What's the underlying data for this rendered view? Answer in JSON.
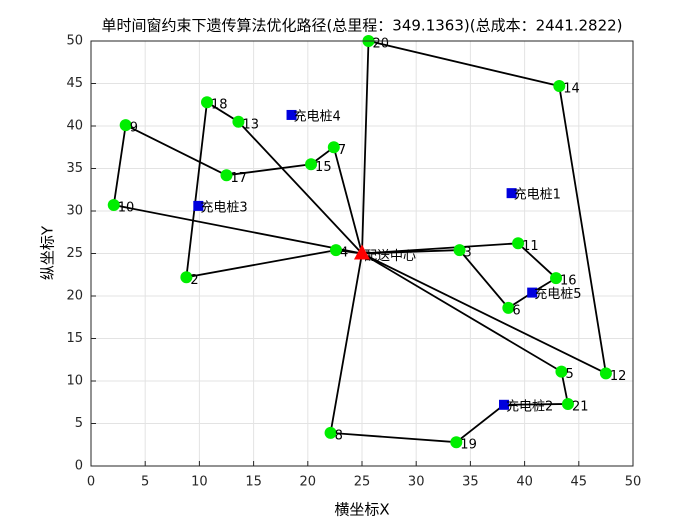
{
  "chart_data": {
    "type": "route",
    "title": "单时间窗约束下遗传算法优化路径(总里程：349.1363)(总成本：2441.2822)",
    "xlabel": "横坐标X",
    "ylabel": "纵坐标Y",
    "xlim": [
      0,
      50
    ],
    "ylim": [
      0,
      50
    ],
    "xticks": [
      0,
      5,
      10,
      15,
      20,
      25,
      30,
      35,
      40,
      45,
      50
    ],
    "yticks": [
      0,
      5,
      10,
      15,
      20,
      25,
      30,
      35,
      40,
      45,
      50
    ],
    "grid": true,
    "route_color": "#000000",
    "customer_color": "#00ee00",
    "station_color": "#0000dd",
    "depot_color": "#ff0000",
    "depot": {
      "label": "配送中心",
      "x": 25,
      "y": 25
    },
    "customers": [
      {
        "label": "20",
        "x": 25.6,
        "y": 50
      },
      {
        "label": "14",
        "x": 43.2,
        "y": 44.7
      },
      {
        "label": "18",
        "x": 10.7,
        "y": 42.8
      },
      {
        "label": "13",
        "x": 13.6,
        "y": 40.5
      },
      {
        "label": "9",
        "x": 3.2,
        "y": 40.1
      },
      {
        "label": "7",
        "x": 22.4,
        "y": 37.5
      },
      {
        "label": "15",
        "x": 20.3,
        "y": 35.5
      },
      {
        "label": "17",
        "x": 12.5,
        "y": 34.2
      },
      {
        "label": "10",
        "x": 2.1,
        "y": 30.7
      },
      {
        "label": "11",
        "x": 39.4,
        "y": 26.2
      },
      {
        "label": "3",
        "x": 34.0,
        "y": 25.4
      },
      {
        "label": "4",
        "x": 22.6,
        "y": 25.4
      },
      {
        "label": "16",
        "x": 42.9,
        "y": 22.1
      },
      {
        "label": "2",
        "x": 8.8,
        "y": 22.2
      },
      {
        "label": "6",
        "x": 38.5,
        "y": 18.6
      },
      {
        "label": "5",
        "x": 43.4,
        "y": 11.1
      },
      {
        "label": "12",
        "x": 47.5,
        "y": 10.9
      },
      {
        "label": "21",
        "x": 44.0,
        "y": 7.3
      },
      {
        "label": "8",
        "x": 22.1,
        "y": 3.9
      },
      {
        "label": "19",
        "x": 33.7,
        "y": 2.8
      }
    ],
    "stations": [
      {
        "label": "充电桩1",
        "x": 38.8,
        "y": 32.1
      },
      {
        "label": "充电桩2",
        "x": 38.1,
        "y": 7.2
      },
      {
        "label": "充电桩3",
        "x": 9.9,
        "y": 30.6
      },
      {
        "label": "充电桩4",
        "x": 18.5,
        "y": 41.3
      },
      {
        "label": "充电桩5",
        "x": 40.7,
        "y": 20.4
      }
    ],
    "routes": [
      {
        "x": [
          25,
          22.6,
          8.8,
          10.7,
          13.6,
          25
        ],
        "y": [
          25,
          25.4,
          22.2,
          42.8,
          40.5,
          25
        ]
      },
      {
        "x": [
          25,
          2.1,
          3.2,
          12.5,
          20.3,
          22.4,
          25
        ],
        "y": [
          25,
          30.7,
          40.1,
          34.2,
          35.5,
          37.5,
          25
        ]
      },
      {
        "x": [
          25,
          25.6,
          43.2,
          47.5,
          25
        ],
        "y": [
          25,
          50,
          44.7,
          10.9,
          25
        ]
      },
      {
        "x": [
          25,
          39.4,
          42.9,
          40.7,
          38.5,
          34.0,
          25
        ],
        "y": [
          25,
          26.2,
          22.1,
          20.4,
          18.6,
          25.4,
          25
        ]
      },
      {
        "x": [
          25,
          43.4,
          44.0,
          38.1,
          33.7,
          22.1,
          25
        ],
        "y": [
          25,
          11.1,
          7.3,
          7.2,
          2.8,
          3.9,
          25
        ]
      }
    ]
  }
}
